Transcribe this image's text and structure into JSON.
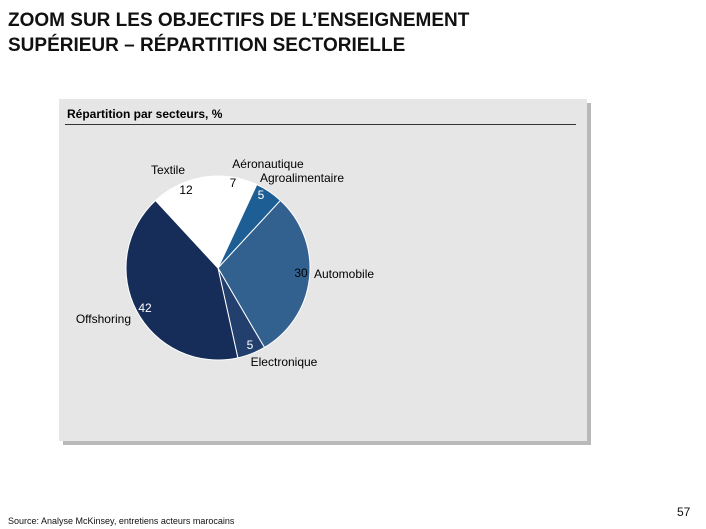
{
  "slide": {
    "title_line1": "ZOOM SUR LES OBJECTIFS DE L’ENSEIGNEMENT",
    "title_line2": "SUPÉRIEUR – RÉPARTITION SECTORIELLE",
    "source": "Source:   Analyse McKinsey, entretiens acteurs marocains",
    "page_number": "57"
  },
  "chart_data": {
    "type": "pie",
    "title": "Répartition par secteurs, %",
    "categories": [
      "Aéronautique",
      "Agroalimentaire",
      "Automobile",
      "Electronique",
      "Offshoring",
      "Textile"
    ],
    "values": [
      7,
      5,
      30,
      5,
      42,
      12
    ],
    "colors": [
      "#ffffff",
      "#1d5f94",
      "#33618f",
      "#223f6e",
      "#162d59",
      "#ffffff"
    ],
    "value_label_colors": [
      "#000000",
      "#ffffff",
      "#000000",
      "#ffffff",
      "#ffffff",
      "#000000"
    ]
  }
}
